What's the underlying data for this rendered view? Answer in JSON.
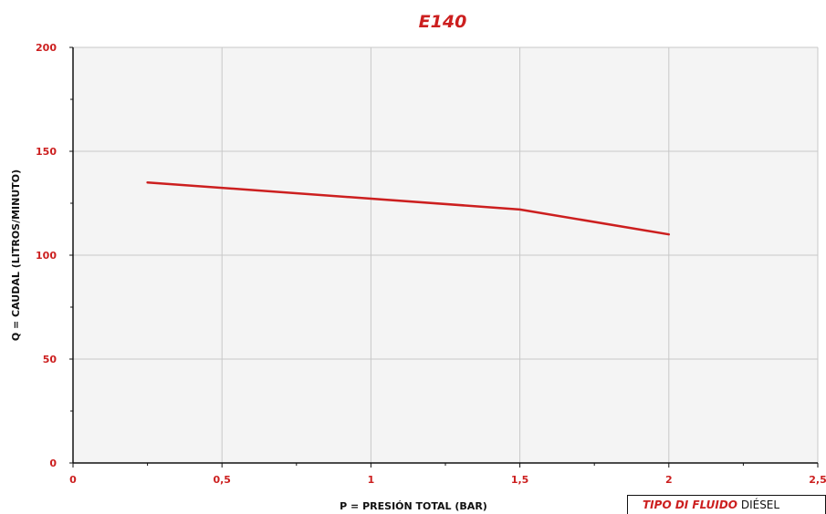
{
  "chart_data": {
    "type": "line",
    "title": "E140",
    "xlabel": "P = PRESIÓN TOTAL (BAR)",
    "ylabel": "Q = CAUDAL (LITROS/MINUTO)",
    "xlim": [
      0,
      2.5
    ],
    "ylim": [
      0,
      200
    ],
    "x_ticks": [
      "0",
      "0,5",
      "1",
      "1,5",
      "2",
      "2,5"
    ],
    "y_ticks": [
      "0",
      "50",
      "100",
      "150",
      "200"
    ],
    "grid": true,
    "series": [
      {
        "x": [
          0.25,
          1.5,
          2.0
        ],
        "values": [
          135,
          122,
          110
        ]
      }
    ]
  },
  "info_box": {
    "label": "TIPO DI FLUIDO",
    "value": "DIÉSEL"
  },
  "colors": {
    "accent": "#cc1f1f",
    "grid": "#c8c8c8",
    "plot_bg": "#f4f4f4",
    "axis": "#111111"
  }
}
